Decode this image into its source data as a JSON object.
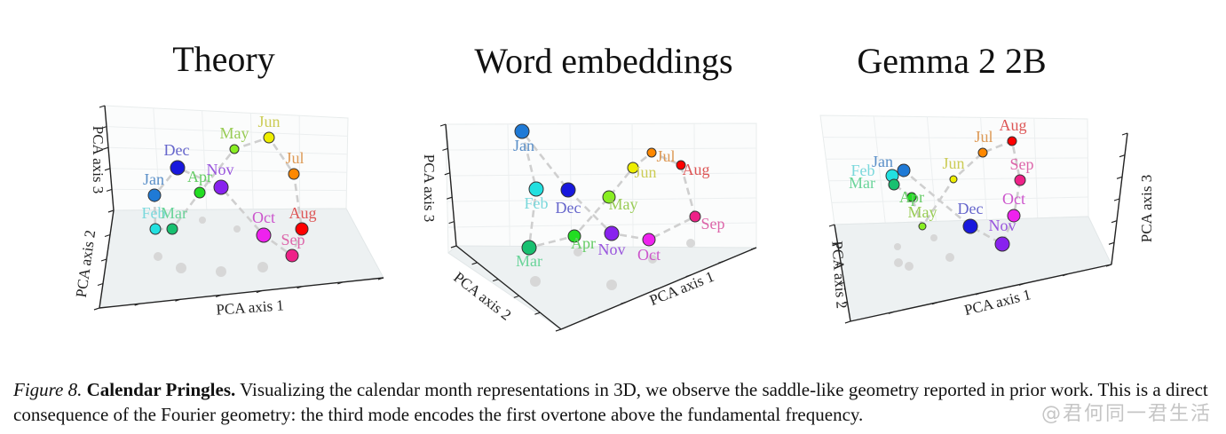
{
  "figure": {
    "panels": [
      {
        "id": "theory",
        "title": "Theory",
        "axis_labels": [
          "PCA axis 1",
          "PCA axis 2",
          "PCA axis 3"
        ],
        "points": [
          {
            "label": "Jan",
            "color": "#1f7ad6",
            "label_color": "#5a8fc8"
          },
          {
            "label": "Feb",
            "color": "#22e0e0",
            "label_color": "#7ad8dc"
          },
          {
            "label": "Mar",
            "color": "#18c070",
            "label_color": "#6ad49a"
          },
          {
            "label": "Apr",
            "color": "#22dd22",
            "label_color": "#66cc66"
          },
          {
            "label": "May",
            "color": "#88ee22",
            "label_color": "#99cc55"
          },
          {
            "label": "Jun",
            "color": "#eeee00",
            "label_color": "#cccc55"
          },
          {
            "label": "Jul",
            "color": "#ff8800",
            "label_color": "#dd9955"
          },
          {
            "label": "Aug",
            "color": "#ff0000",
            "label_color": "#dd5555"
          },
          {
            "label": "Sep",
            "color": "#ee2288",
            "label_color": "#dd66aa"
          },
          {
            "label": "Oct",
            "color": "#ee22ee",
            "label_color": "#cc55cc"
          },
          {
            "label": "Nov",
            "color": "#8822ee",
            "label_color": "#9955dd"
          },
          {
            "label": "Dec",
            "color": "#1818dd",
            "label_color": "#6666cc"
          }
        ]
      },
      {
        "id": "word-embeddings",
        "title": "Word embeddings",
        "axis_labels": [
          "PCA axis 1",
          "PCA axis 2",
          "PCA axis 3"
        ],
        "points": [
          {
            "label": "Jan",
            "color": "#1f7ad6",
            "label_color": "#5a8fc8"
          },
          {
            "label": "Feb",
            "color": "#22e0e0",
            "label_color": "#7ad8dc"
          },
          {
            "label": "Mar",
            "color": "#18c070",
            "label_color": "#6ad49a"
          },
          {
            "label": "Apr",
            "color": "#22dd22",
            "label_color": "#66cc66"
          },
          {
            "label": "May",
            "color": "#88ee22",
            "label_color": "#99cc55"
          },
          {
            "label": "Jun",
            "color": "#eeee00",
            "label_color": "#cccc55"
          },
          {
            "label": "Jul",
            "color": "#ff8800",
            "label_color": "#dd9955"
          },
          {
            "label": "Aug",
            "color": "#ff0000",
            "label_color": "#dd5555"
          },
          {
            "label": "Sep",
            "color": "#ee2288",
            "label_color": "#dd66aa"
          },
          {
            "label": "Oct",
            "color": "#ee22ee",
            "label_color": "#cc55cc"
          },
          {
            "label": "Nov",
            "color": "#8822ee",
            "label_color": "#9955dd"
          },
          {
            "label": "Dec",
            "color": "#1818dd",
            "label_color": "#6666cc"
          }
        ]
      },
      {
        "id": "gemma",
        "title": "Gemma 2 2B",
        "axis_labels": [
          "PCA axis 1",
          "PCA axis 2",
          "PCA axis 3"
        ],
        "points": [
          {
            "label": "Jan",
            "color": "#1f7ad6",
            "label_color": "#5a8fc8"
          },
          {
            "label": "Feb",
            "color": "#22e0e0",
            "label_color": "#7ad8dc"
          },
          {
            "label": "Mar",
            "color": "#18c070",
            "label_color": "#6ad49a"
          },
          {
            "label": "Apr",
            "color": "#22dd22",
            "label_color": "#66cc66"
          },
          {
            "label": "May",
            "color": "#88ee22",
            "label_color": "#99cc55"
          },
          {
            "label": "Jun",
            "color": "#eeee00",
            "label_color": "#cccc55"
          },
          {
            "label": "Jul",
            "color": "#ff8800",
            "label_color": "#dd9955"
          },
          {
            "label": "Aug",
            "color": "#ff0000",
            "label_color": "#dd5555"
          },
          {
            "label": "Sep",
            "color": "#ee2288",
            "label_color": "#dd66aa"
          },
          {
            "label": "Oct",
            "color": "#ee22ee",
            "label_color": "#cc55cc"
          },
          {
            "label": "Nov",
            "color": "#8822ee",
            "label_color": "#9955dd"
          },
          {
            "label": "Dec",
            "color": "#1818dd",
            "label_color": "#6666cc"
          }
        ]
      }
    ]
  },
  "caption": {
    "figure_label": "Figure 8.",
    "bold_title": "Calendar Pringles.",
    "text": "Visualizing the calendar month representations in 3D, we observe the saddle-like geometry reported in prior work. This is a direct consequence of the Fourier geometry: the third mode encodes the first overtone above the fundamental frequency."
  },
  "watermark": "@君何同一君生活"
}
